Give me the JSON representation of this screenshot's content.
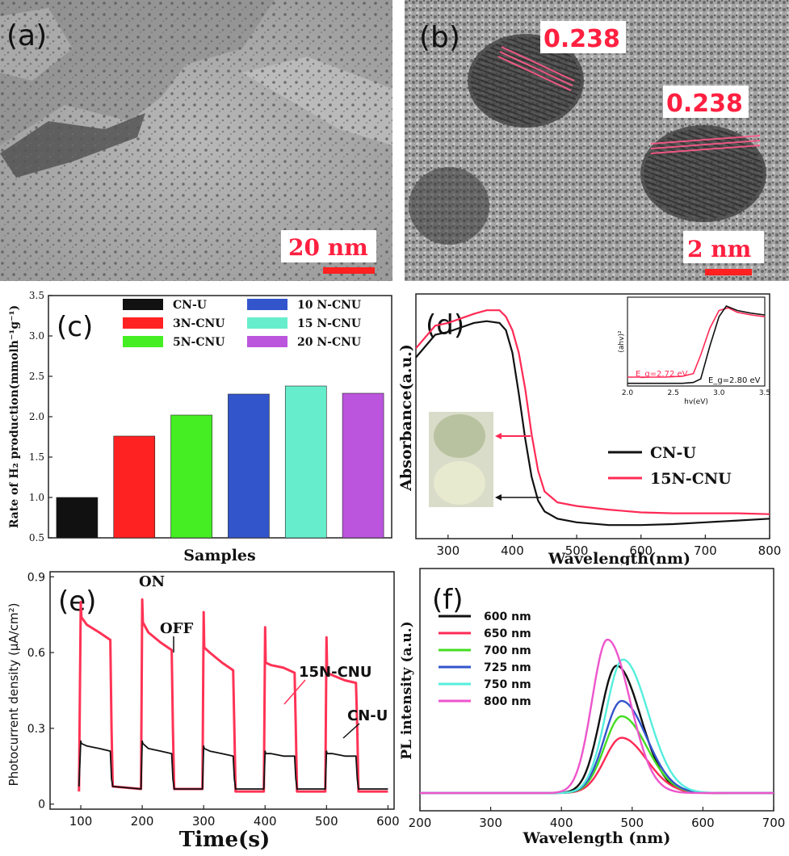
{
  "panel_a": {
    "label": "(a)",
    "scale_bar": "20 nm"
  },
  "panel_b": {
    "label": "(b)",
    "scale_bar": "2 nm",
    "lattice_labels": [
      "0.238",
      "0.238"
    ]
  },
  "chart_data": [
    {
      "panel": "(c)",
      "type": "bar",
      "ylabel": "Rate of H₂ production(mmolh⁻¹g⁻¹)",
      "xlabel": "Samples",
      "ylim": [
        0.5,
        3.5
      ],
      "yticks": [
        "0.5",
        "1.0",
        "1.5",
        "2.0",
        "2.5",
        "3.0",
        "3.5"
      ],
      "categories": [
        "CN-U",
        "3N-CNU",
        "5N-CNU",
        "10 N-CNU",
        "15 N-CNU",
        "20 N-CNU"
      ],
      "values": [
        1.0,
        1.76,
        2.02,
        2.28,
        2.38,
        2.29
      ],
      "colors": [
        "#111111",
        "#ff2222",
        "#44ee22",
        "#3355cc",
        "#66eecc",
        "#bb55dd"
      ],
      "legend_placement": "top"
    },
    {
      "panel": "(d)",
      "type": "line",
      "ylabel": "Absorbance(a.u.)",
      "xlabel": "Wavelength(nm)",
      "xlim": [
        250,
        800
      ],
      "xticks": [
        "300",
        "400",
        "500",
        "600",
        "700",
        "800"
      ],
      "series": [
        {
          "name": "CN-U",
          "color": "#111111",
          "x": [
            250,
            280,
            300,
            320,
            340,
            360,
            380,
            390,
            400,
            410,
            420,
            430,
            440,
            450,
            470,
            500,
            550,
            600,
            650,
            700,
            750,
            800
          ],
          "y": [
            2.0,
            2.25,
            2.28,
            2.33,
            2.38,
            2.4,
            2.38,
            2.3,
            2.05,
            1.6,
            1.1,
            0.68,
            0.42,
            0.3,
            0.22,
            0.18,
            0.15,
            0.15,
            0.16,
            0.18,
            0.2,
            0.22
          ]
        },
        {
          "name": "15N-CNU",
          "color": "#ff2a55",
          "x": [
            250,
            280,
            300,
            320,
            340,
            360,
            380,
            390,
            400,
            410,
            420,
            430,
            440,
            450,
            470,
            500,
            550,
            600,
            650,
            700,
            750,
            800
          ],
          "y": [
            2.1,
            2.35,
            2.38,
            2.43,
            2.48,
            2.52,
            2.52,
            2.45,
            2.3,
            2.05,
            1.65,
            1.15,
            0.75,
            0.52,
            0.4,
            0.36,
            0.32,
            0.29,
            0.28,
            0.28,
            0.28,
            0.27
          ]
        }
      ],
      "inset": {
        "xlabel": "hv(eV)",
        "ylabel": "(ahv)²",
        "xlim": [
          2.0,
          3.5
        ],
        "xticks": [
          "2.0",
          "2.5",
          "3.0",
          "3.5"
        ],
        "annotations": [
          "E_g=2.72 eV",
          "E_g=2.80 eV"
        ],
        "series": [
          {
            "name": "15N-CNU",
            "color": "#ff2a55",
            "x": [
              2.0,
              2.4,
              2.6,
              2.72,
              2.8,
              2.9,
              3.0,
              3.1,
              3.2,
              3.35,
              3.5
            ],
            "y": [
              0.1,
              0.1,
              0.11,
              0.14,
              0.35,
              0.65,
              0.85,
              0.88,
              0.83,
              0.8,
              0.78
            ]
          },
          {
            "name": "CN-U",
            "color": "#111111",
            "x": [
              2.0,
              2.4,
              2.6,
              2.72,
              2.8,
              2.9,
              3.0,
              3.08,
              3.2,
              3.35,
              3.5
            ],
            "y": [
              0.03,
              0.03,
              0.03,
              0.04,
              0.08,
              0.45,
              0.78,
              0.9,
              0.85,
              0.82,
              0.8
            ]
          }
        ]
      },
      "legend_placement": "center-right"
    },
    {
      "panel": "(e)",
      "type": "line",
      "ylabel": "Photocurrent density (μA/cm²)",
      "xlabel": "Time(s)",
      "xlim": [
        50,
        610
      ],
      "ylim": [
        -0.02,
        0.92
      ],
      "xticks": [
        "100",
        "200",
        "300",
        "400",
        "500",
        "600"
      ],
      "yticks": [
        "0",
        "0.3",
        "0.6",
        "0.9"
      ],
      "annotations": [
        "ON",
        "OFF",
        "15N-CNU",
        "CN-U"
      ],
      "series": [
        {
          "name": "15N-CNU",
          "color": "#ff3355",
          "x": [
            97,
            100,
            101,
            110,
            130,
            148,
            150,
            152,
            198,
            200,
            201,
            210,
            230,
            248,
            250,
            252,
            298,
            300,
            301,
            310,
            330,
            348,
            350,
            352,
            398,
            400,
            401,
            410,
            430,
            448,
            450,
            452,
            498,
            500,
            501,
            510,
            530,
            548,
            550,
            552,
            600
          ],
          "y": [
            0.05,
            0.8,
            0.74,
            0.71,
            0.68,
            0.65,
            0.3,
            0.07,
            0.06,
            0.81,
            0.72,
            0.68,
            0.64,
            0.61,
            0.3,
            0.06,
            0.06,
            0.76,
            0.62,
            0.6,
            0.56,
            0.53,
            0.3,
            0.05,
            0.05,
            0.7,
            0.56,
            0.55,
            0.54,
            0.52,
            0.3,
            0.05,
            0.05,
            0.66,
            0.52,
            0.51,
            0.49,
            0.48,
            0.3,
            0.05,
            0.05
          ]
        },
        {
          "name": "CN-U",
          "color": "#111111",
          "x": [
            97,
            100,
            101,
            110,
            130,
            148,
            150,
            152,
            198,
            200,
            201,
            210,
            230,
            248,
            250,
            252,
            298,
            300,
            301,
            310,
            330,
            348,
            350,
            352,
            398,
            400,
            401,
            410,
            430,
            448,
            450,
            452,
            498,
            500,
            501,
            510,
            530,
            548,
            550,
            552,
            600
          ],
          "y": [
            0.07,
            0.25,
            0.24,
            0.23,
            0.22,
            0.21,
            0.1,
            0.07,
            0.06,
            0.25,
            0.24,
            0.22,
            0.21,
            0.2,
            0.1,
            0.06,
            0.06,
            0.23,
            0.22,
            0.21,
            0.2,
            0.19,
            0.1,
            0.06,
            0.06,
            0.21,
            0.2,
            0.2,
            0.19,
            0.19,
            0.1,
            0.06,
            0.06,
            0.21,
            0.2,
            0.2,
            0.19,
            0.19,
            0.1,
            0.06,
            0.06
          ]
        }
      ]
    },
    {
      "panel": "(f)",
      "type": "line",
      "ylabel": "PL intensity (a.u.)",
      "xlabel": "Wavelength (nm)",
      "xlim": [
        200,
        700
      ],
      "xticks": [
        "200",
        "300",
        "400",
        "500",
        "600",
        "700"
      ],
      "series": [
        {
          "name": "600 nm",
          "color": "#111111",
          "peak": 478,
          "height": 0.83,
          "width": 38
        },
        {
          "name": "650 nm",
          "color": "#ff2a55",
          "peak": 485,
          "height": 0.36,
          "width": 40
        },
        {
          "name": "700 nm",
          "color": "#44dd22",
          "peak": 485,
          "height": 0.5,
          "width": 40
        },
        {
          "name": "725 nm",
          "color": "#3355cc",
          "peak": 485,
          "height": 0.6,
          "width": 40
        },
        {
          "name": "750 nm",
          "color": "#55eedd",
          "peak": 487,
          "height": 0.87,
          "width": 40
        },
        {
          "name": "800 nm",
          "color": "#ee55cc",
          "peak": 465,
          "height": 1.0,
          "width": 36
        }
      ],
      "legend_placement": "top-left"
    }
  ]
}
